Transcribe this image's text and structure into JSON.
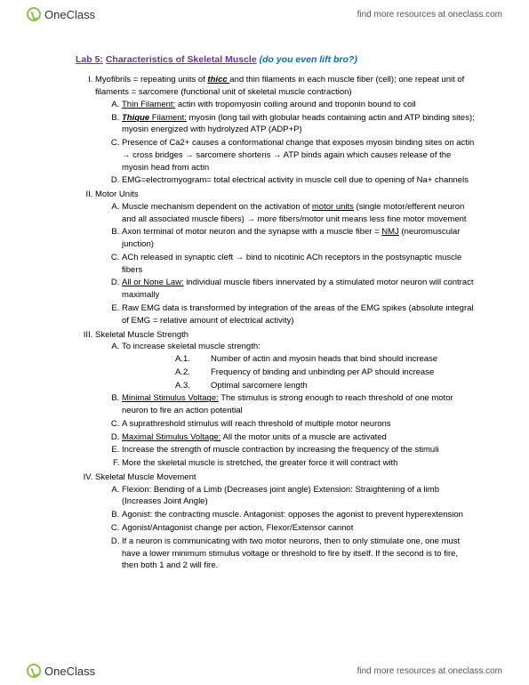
{
  "brand": {
    "name": "OneClass",
    "tagline": "find more resources at oneclass.com"
  },
  "doc": {
    "title_label": "Lab 5:",
    "title_main": "Characteristics of Skeletal Muscle",
    "title_sub": "(do you even lift bro?)",
    "sections": [
      {
        "intro": "Myofibrils = repeating units of ",
        "intro_bold": "thicc ",
        "intro_after": "and thin filaments in each muscle fiber (cell); one repeat unit of filaments = sarcomere (functional unit of skeletal muscle contraction)",
        "items": [
          {
            "lead_u": "Thin Filament:",
            "text": " actin with tropomyosin coiling around and troponin bound to coil"
          },
          {
            "lead_bui": "Thique",
            "lead_after": " Filament:",
            "text": " myosin (long tail with globular heads containing actin and ATP binding sites); myosin energized with hydrolyzed ATP (ADP+P)"
          },
          {
            "text": "Presence of Ca2+ causes a conformational change that exposes myosin binding sites on actin → cross bridges → sarcomere shortens → ATP binds again which causes release of the myosin head from actin"
          },
          {
            "text": "EMG=electromyogram= total electrical activity in muscle cell due to opening of Na+ channels"
          }
        ]
      },
      {
        "heading": "Motor Units",
        "items": [
          {
            "pre": "Muscle mechanism dependent on the activation of ",
            "u": "motor units",
            "post": " (single motor/efferent neuron and all associated muscle fibers) → more fibers/motor unit means less fine motor movement"
          },
          {
            "pre": "Axon terminal of motor neuron and the synapse with a muscle fiber = ",
            "u": "NMJ",
            "post": " (neuromuscular junction)"
          },
          {
            "text": "ACh released in synaptic cleft → bind to nicotinic ACh receptors in the postsynaptic muscle fibers"
          },
          {
            "u": "All or None Law:",
            "post": " individual muscle fibers innervated by a stimulated motor neuron will contract maximally"
          },
          {
            "text": "Raw EMG data is transformed by integration of the areas of the EMG spikes (absolute integral of EMG = relative amount of electrical activity)"
          }
        ]
      },
      {
        "heading": "Skeletal Muscle Strength",
        "items": [
          {
            "text": "To increase skeletal muscle strength:",
            "sub": [
              {
                "p": "A.1.",
                "t": "Number of actin and myosin heads that bind should increase"
              },
              {
                "p": "A.2.",
                "t": "Frequency of binding and unbinding per AP should increase"
              },
              {
                "p": "A.3.",
                "t": "Optimal sarcomere length"
              }
            ]
          },
          {
            "u": "Minimal Stimulus Voltage:",
            "post": " The stimulus is strong enough to reach threshold of one motor neuron to fire an action potential"
          },
          {
            "text": "A suprathreshold stimulus will reach threshold of multiple motor neurons"
          },
          {
            "u": "Maximal Stimulus Voltage:",
            "post": " All the motor units of a muscle are activated"
          },
          {
            "text": "Increase the strength of muscle contraction by increasing the frequency of the stimuli"
          },
          {
            "text": "More the skeletal muscle is stretched, the greater force it will contract with"
          }
        ]
      },
      {
        "heading": "Skeletal Muscle Movement",
        "items": [
          {
            "text": "Flexion: Bending of a Limb (Decreases joint angle) Extension: Straightening of a limb (Increases Joint Angle)"
          },
          {
            "text": "Agonist: the contracting muscle. Antagonist: opposes the agonist to prevent hyperextension"
          },
          {
            "text": "Agonist/Antagonist change per action, Flexor/Extensor cannot"
          },
          {
            "text": "If a neuron is communicating with two motor neurons, then to only stimulate one, one must have a lower minimum stimulus voltage or threshold to fire by itself. If the second is to fire, then both 1 and 2 will fire."
          }
        ]
      }
    ]
  }
}
